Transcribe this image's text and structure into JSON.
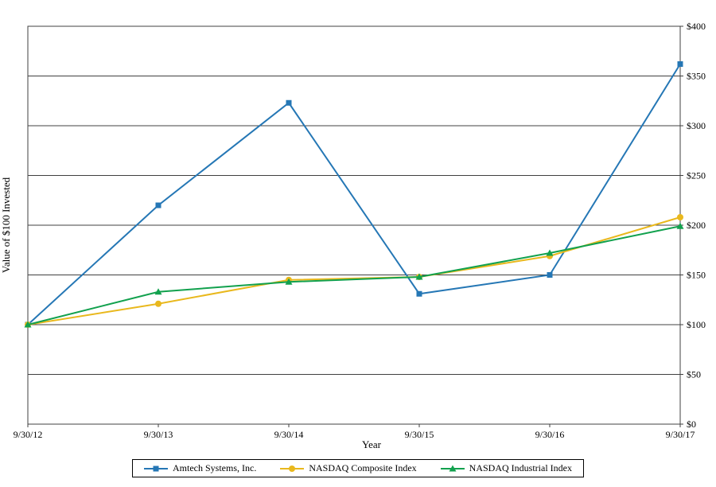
{
  "chart_data": {
    "type": "line",
    "title": "",
    "xlabel": "Year",
    "ylabel": "Value of $100 Invested",
    "x": [
      "9/30/12",
      "9/30/13",
      "9/30/14",
      "9/30/15",
      "9/30/16",
      "9/30/17"
    ],
    "ylim": [
      0,
      400
    ],
    "ytick_step": 50,
    "ytick_labels": [
      "$0",
      "$50",
      "$100",
      "$150",
      "$200",
      "$250",
      "$300",
      "$350",
      "$400"
    ],
    "grid": "horizontal",
    "legend_position": "bottom",
    "axis_color": "#404040",
    "series": [
      {
        "name": "Amtech Systems, Inc.",
        "color": "#2577b5",
        "marker": "square",
        "values": [
          100,
          220,
          323,
          131,
          150,
          362
        ]
      },
      {
        "name": "NASDAQ Composite Index",
        "color": "#e9b81d",
        "marker": "circle",
        "values": [
          100,
          121,
          145,
          148,
          169,
          208
        ]
      },
      {
        "name": "NASDAQ Industrial Index",
        "color": "#12a14e",
        "marker": "triangle",
        "values": [
          100,
          133,
          143,
          148,
          172,
          199
        ]
      }
    ]
  }
}
